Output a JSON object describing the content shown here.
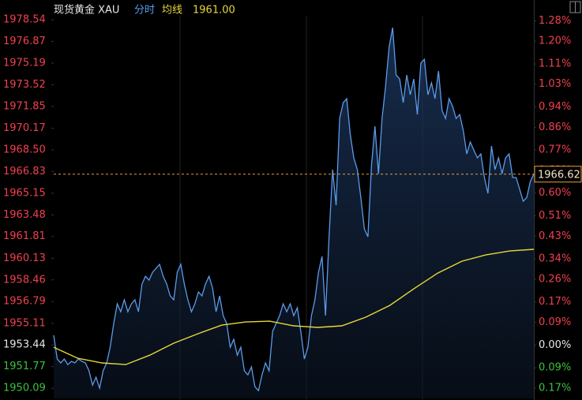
{
  "chart_data": {
    "type": "line",
    "title": "现货黄金 XAU",
    "legend_value": "1961.00",
    "ylim": [
      1949.31,
      1979.76
    ],
    "yticks": [
      1978.54,
      1976.87,
      1975.19,
      1973.52,
      1971.85,
      1970.17,
      {
        "value": 1968.5,
        "label": "1968.50"
      },
      1966.83,
      1965.15,
      1963.48,
      1961.81,
      1960.13,
      1958.46,
      1956.79,
      1955.11,
      1953.44,
      1951.77,
      1950.09
    ],
    "y2lim": [
      -0.211,
      1.347
    ],
    "y2ticks": [
      {
        "value": 1.28,
        "label": "1.28%"
      },
      {
        "value": 1.2,
        "label": "1.20%"
      },
      {
        "value": 1.11,
        "label": "1.11%"
      },
      {
        "value": 1.03,
        "label": "1.03%"
      },
      {
        "value": 0.94,
        "label": "0.94%"
      },
      {
        "value": 0.86,
        "label": "0.86%"
      },
      {
        "value": 0.77,
        "label": "0.77%"
      },
      {
        "value": 0.69,
        "label": "0.69%"
      },
      {
        "value": 0.6,
        "label": "0.60%"
      },
      {
        "value": 0.51,
        "label": "0.51%"
      },
      {
        "value": 0.43,
        "label": "0.43%"
      },
      {
        "value": 0.34,
        "label": "0.34%"
      },
      {
        "value": 0.26,
        "label": "0.26%"
      },
      {
        "value": 0.17,
        "label": "0.17%"
      },
      {
        "value": 0.09,
        "label": "0.09%"
      },
      {
        "value": 0,
        "label": "0.00%"
      },
      {
        "value": -0.09,
        "label": "0.09%"
      },
      {
        "value": -0.17,
        "label": "0.17%"
      }
    ],
    "up_color": "#f0404f",
    "down_color": "#3cc13c",
    "flat_color": "#e6e6e6",
    "last_price": 1966.62,
    "last_price_color": "#e8a040",
    "series": [
      {
        "name": "分时",
        "color": "#5b9bea",
        "values": [
          1954.18,
          1952.35,
          1952.05,
          1952.35,
          1951.92,
          1952.17,
          1952.05,
          1952.35,
          1952.17,
          1952.05,
          1951.44,
          1950.34,
          1950.95,
          1950.1,
          1951.44,
          1952.05,
          1953.26,
          1955.09,
          1956.61,
          1956.0,
          1956.92,
          1956.0,
          1956.61,
          1956.92,
          1956.0,
          1958.14,
          1958.74,
          1958.44,
          1959.05,
          1959.35,
          1959.66,
          1958.74,
          1958.14,
          1957.22,
          1956.92,
          1959.05,
          1959.66,
          1958.14,
          1956.92,
          1956.0,
          1956.61,
          1957.53,
          1957.22,
          1958.14,
          1958.74,
          1957.83,
          1956.0,
          1957.22,
          1955.7,
          1955.09,
          1953.26,
          1953.87,
          1952.65,
          1953.26,
          1951.44,
          1951.13,
          1951.74,
          1950.22,
          1949.91,
          1951.13,
          1952.05,
          1951.44,
          1954.48,
          1955.09,
          1955.7,
          1956.61,
          1956.0,
          1956.61,
          1955.7,
          1956.31,
          1954.48,
          1952.35,
          1953.26,
          1955.7,
          1956.92,
          1959.05,
          1960.27,
          1955.7,
          1961.79,
          1966.97,
          1964.23,
          1970.92,
          1972.14,
          1972.45,
          1969.71,
          1967.88,
          1966.97,
          1964.83,
          1962.4,
          1961.79,
          1967.27,
          1970.32,
          1966.66,
          1970.92,
          1973.36,
          1976.41,
          1977.93,
          1974.27,
          1973.97,
          1972.14,
          1974.27,
          1972.75,
          1973.97,
          1971.23,
          1975.19,
          1975.49,
          1972.75,
          1973.67,
          1972.45,
          1974.58,
          1971.53,
          1970.92,
          1972.45,
          1971.84,
          1970.92,
          1971.23,
          1970.01,
          1968.18,
          1969.1,
          1968.49,
          1967.88,
          1968.18,
          1966.36,
          1965.14,
          1968.79,
          1966.97,
          1967.88,
          1966.66,
          1967.88,
          1968.18,
          1966.36,
          1966.36,
          1965.44,
          1964.53,
          1964.83,
          1966.05,
          1966.62
        ]
      },
      {
        "name": "均线",
        "color": "#e6d83a",
        "values": [
          1953.26,
          1952.41,
          1952.05,
          1951.92,
          1952.65,
          1953.57,
          1954.3,
          1954.97,
          1955.21,
          1955.27,
          1954.91,
          1954.79,
          1954.91,
          1955.58,
          1956.49,
          1957.77,
          1958.99,
          1959.9,
          1960.39,
          1960.69,
          1960.82
        ]
      }
    ]
  }
}
